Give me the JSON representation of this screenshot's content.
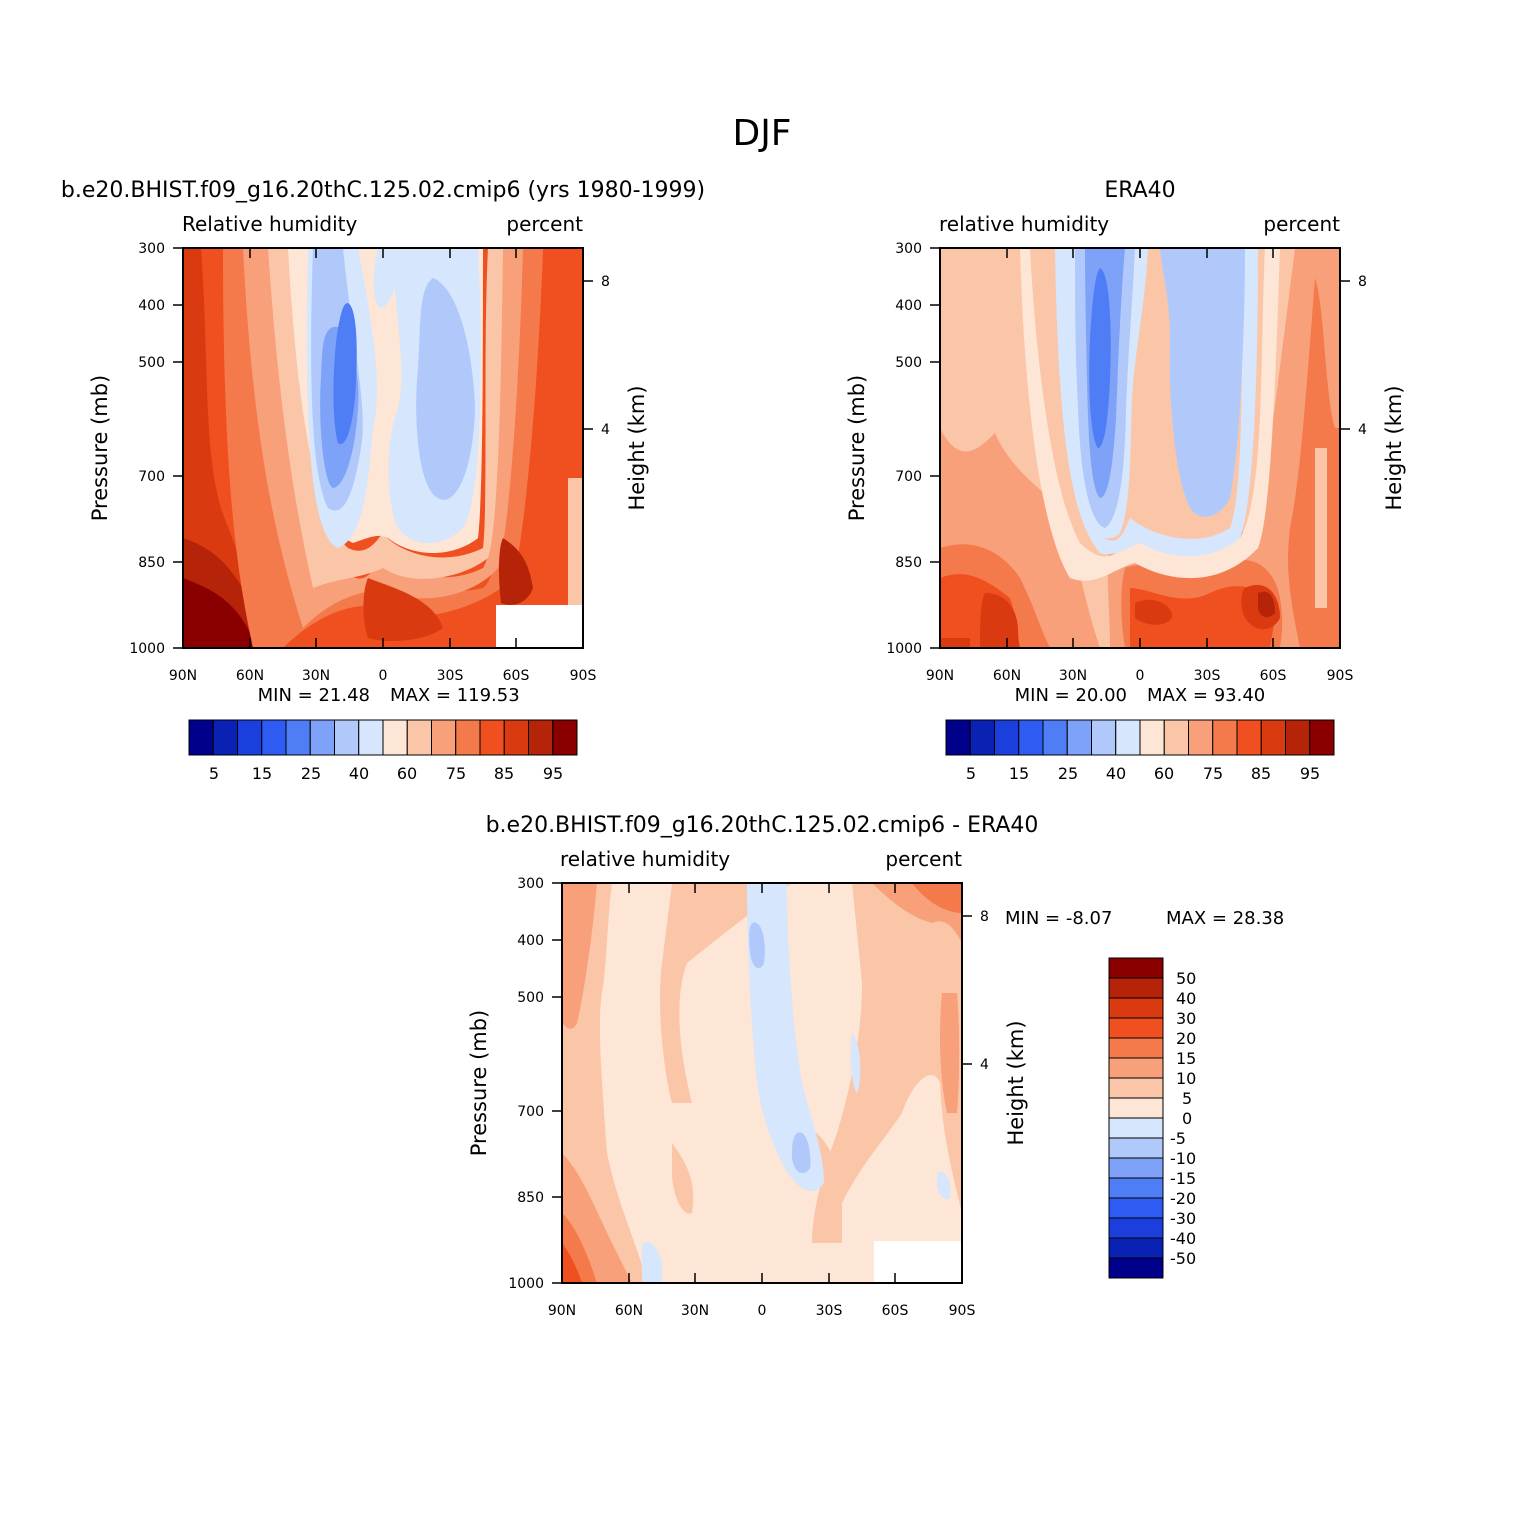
{
  "page": {
    "title": "DJF"
  },
  "colors": {
    "levels15": [
      "#00008b",
      "#0a22b4",
      "#1b3fdc",
      "#2e5cf2",
      "#4e7df5",
      "#7ea2f7",
      "#b1c9fa",
      "#d6e6fc",
      "#fde6d6",
      "#fbc6a8",
      "#f8a07a",
      "#f47a4c",
      "#f0501f",
      "#d93a10",
      "#b52408",
      "#8a0000"
    ],
    "levels16_diff": [
      "#00008b",
      "#0a22b4",
      "#1b3fdc",
      "#2e5cf2",
      "#4e7df5",
      "#7ea2f7",
      "#b1c9fa",
      "#d6e6fc",
      "#fde6d6",
      "#fbc6a8",
      "#f8a07a",
      "#f47a4c",
      "#f0501f",
      "#d93a10",
      "#b52408",
      "#8a0000"
    ]
  },
  "chart_data": [
    {
      "id": "model",
      "type": "heatmap",
      "title": "b.e20.BHIST.f09_g16.20thC.125.02.cmip6 (yrs 1980-1999)",
      "left_label": "Relative humidity",
      "right_label": "percent",
      "ylabel": "Pressure (mb)",
      "y2label": "Height (km)",
      "x_ticks": [
        "90N",
        "60N",
        "30N",
        "0",
        "30S",
        "60S",
        "90S"
      ],
      "y_ticks": [
        "300",
        "400",
        "500",
        "700",
        "850",
        "1000"
      ],
      "y_values": [
        300,
        400,
        500,
        700,
        850,
        1000
      ],
      "y2_ticks": [
        "8",
        "4"
      ],
      "ylim": [
        1000,
        300
      ],
      "min_text": "MIN =   21.48",
      "max_text": "MAX = 119.53",
      "colorbar_labels": [
        "5",
        "15",
        "25",
        "40",
        "60",
        "75",
        "85",
        "95"
      ]
    },
    {
      "id": "obs",
      "type": "heatmap",
      "title": "ERA40",
      "left_label": "relative humidity",
      "right_label": "percent",
      "ylabel": "Pressure (mb)",
      "y2label": "Height (km)",
      "x_ticks": [
        "90N",
        "60N",
        "30N",
        "0",
        "30S",
        "60S",
        "90S"
      ],
      "y_ticks": [
        "300",
        "400",
        "500",
        "700",
        "850",
        "1000"
      ],
      "y_values": [
        300,
        400,
        500,
        700,
        850,
        1000
      ],
      "y2_ticks": [
        "8",
        "4"
      ],
      "ylim": [
        1000,
        300
      ],
      "min_text": "MIN =   20.00",
      "max_text": "MAX =   93.40",
      "colorbar_labels": [
        "5",
        "15",
        "25",
        "40",
        "60",
        "75",
        "85",
        "95"
      ]
    },
    {
      "id": "diff",
      "type": "heatmap",
      "title": "b.e20.BHIST.f09_g16.20thC.125.02.cmip6 - ERA40",
      "left_label": "relative humidity",
      "right_label": "percent",
      "ylabel": "Pressure (mb)",
      "y2label": "Height (km)",
      "x_ticks": [
        "90N",
        "60N",
        "30N",
        "0",
        "30S",
        "60S",
        "90S"
      ],
      "y_ticks": [
        "300",
        "400",
        "500",
        "700",
        "850",
        "1000"
      ],
      "y_values": [
        300,
        400,
        500,
        700,
        850,
        1000
      ],
      "y2_ticks": [
        "8",
        "4"
      ],
      "ylim": [
        1000,
        300
      ],
      "min_text": "MIN =   -8.07",
      "max_text": "MAX =   28.38",
      "colorbar_labels": [
        "50",
        "40",
        "30",
        "20",
        "15",
        "10",
        "5",
        "0",
        "-5",
        "-10",
        "-15",
        "-20",
        "-30",
        "-40",
        "-50"
      ]
    }
  ]
}
